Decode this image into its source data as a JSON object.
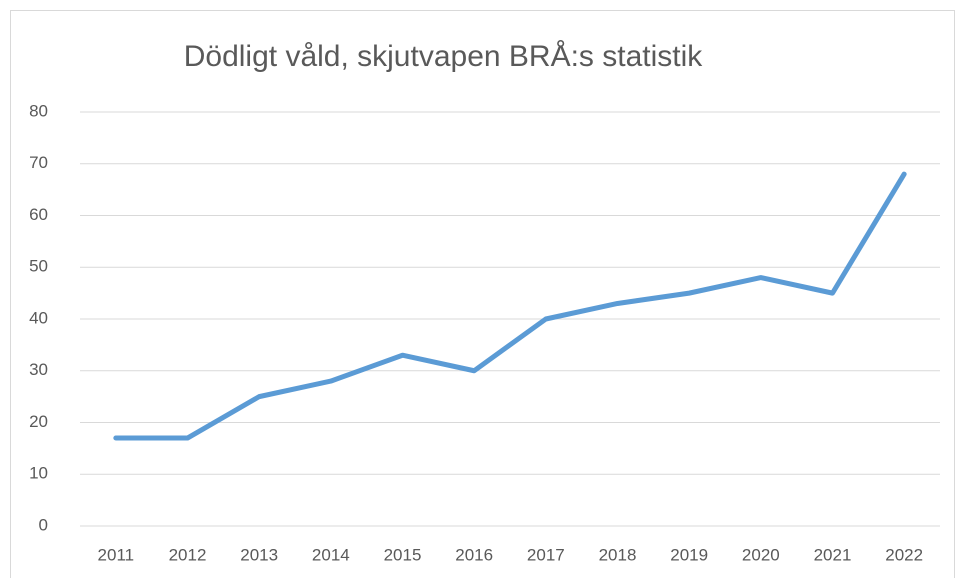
{
  "chart_data": {
    "type": "line",
    "title": "Dödligt våld, skjutvapen BRÅ:s statistik",
    "categories": [
      "2011",
      "2012",
      "2013",
      "2014",
      "2015",
      "2016",
      "2017",
      "2018",
      "2019",
      "2020",
      "2021",
      "2022"
    ],
    "series": [
      {
        "name": "Dödligt våld, skjutvapen",
        "color": "#5b9bd5",
        "values": [
          17,
          17,
          25,
          28,
          33,
          30,
          40,
          43,
          45,
          48,
          45,
          68
        ]
      }
    ],
    "ylim": [
      0,
      80
    ],
    "yticks": [
      0,
      10,
      20,
      30,
      40,
      50,
      60,
      70,
      80
    ],
    "grid": true
  }
}
